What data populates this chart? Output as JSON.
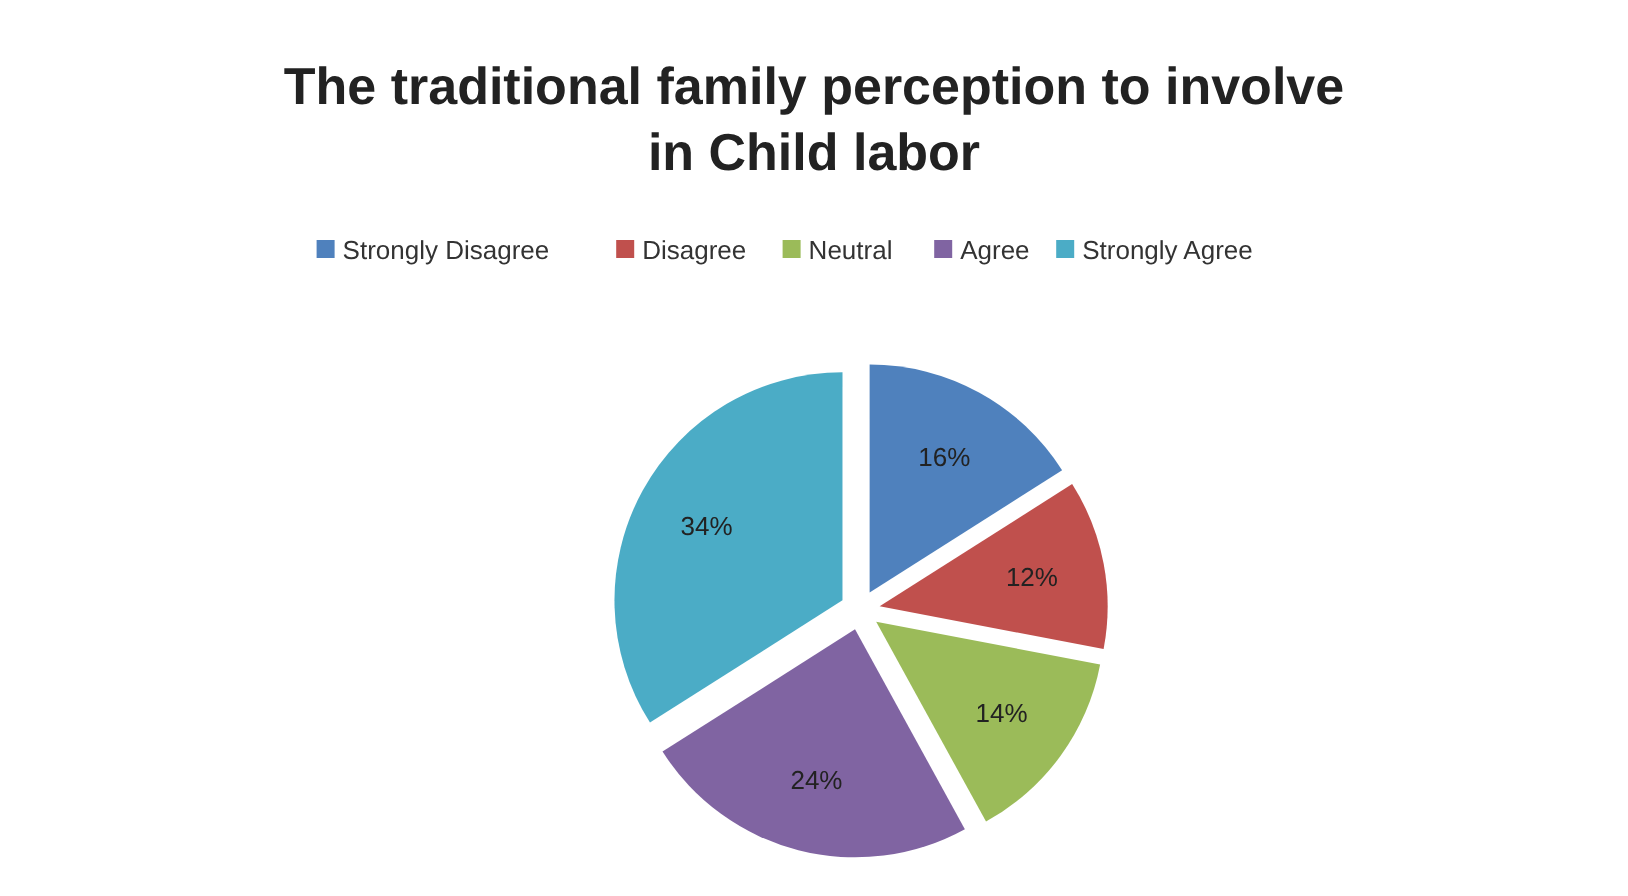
{
  "chart_data": {
    "type": "pie",
    "title": "The traditional family perception to involve in Child labor",
    "categories": [
      "Strongly Disagree",
      "Disagree",
      "Neutral",
      "Agree",
      "Strongly Agree"
    ],
    "values": [
      16,
      12,
      14,
      24,
      34
    ],
    "value_labels": [
      "16%",
      "12%",
      "14%",
      "24%",
      "34%"
    ],
    "colors": [
      "#4f81bd",
      "#c0504d",
      "#9bbb59",
      "#8064a2",
      "#4bacc6"
    ],
    "legend": "top"
  }
}
